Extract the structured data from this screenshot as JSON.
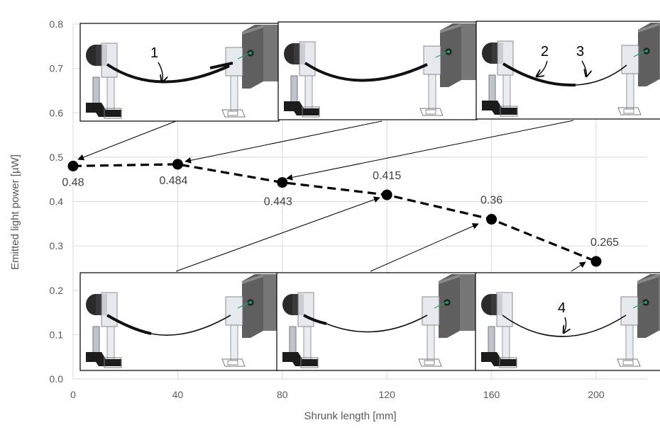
{
  "chart_data": {
    "type": "scatter",
    "title": "",
    "xlabel": "Shrunk length [mm]",
    "ylabel": "Emitted light power [µW]",
    "xlim": [
      0,
      220
    ],
    "ylim": [
      0,
      0.8
    ],
    "x_ticks": [
      "0",
      "40",
      "80",
      "120",
      "160",
      "200"
    ],
    "y_ticks": [
      "0.0",
      "0.1",
      "0.2",
      "0.3",
      "0.4",
      "0.5",
      "0.6",
      "0.7",
      "0.8"
    ],
    "grid": true,
    "line_style": "dashed",
    "series": [
      {
        "x": [
          0,
          40,
          80,
          120,
          160,
          200
        ],
        "y": [
          0.48,
          0.484,
          0.443,
          0.415,
          0.36,
          0.265
        ],
        "labels": [
          "0.48",
          "0.484",
          "0.443",
          "0.415",
          "0.36",
          "0.265"
        ]
      }
    ],
    "annotations": [
      "1",
      "2",
      "3",
      "4"
    ]
  },
  "colors": {
    "axis_text": "#595959",
    "grid": "#d9d9d9",
    "series": "#000000",
    "device_panel": "#6b6b6b",
    "device_base": "#222222"
  }
}
